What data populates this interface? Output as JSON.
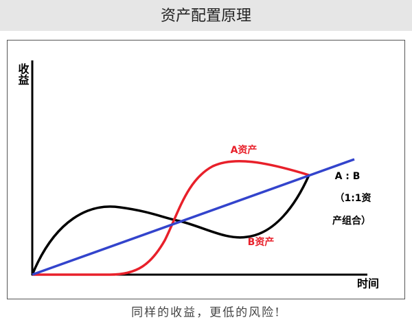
{
  "header": {
    "title": "资产配置原理"
  },
  "diagram": {
    "y_axis_label": "收益",
    "x_axis_label": "时间",
    "curve_a_label": "A资产",
    "curve_b_label": "B资产",
    "combo_label_lines": [
      "A : B",
      "（1:1资",
      "产组合）"
    ]
  },
  "caption": "同样的收益，更低的风险!"
}
